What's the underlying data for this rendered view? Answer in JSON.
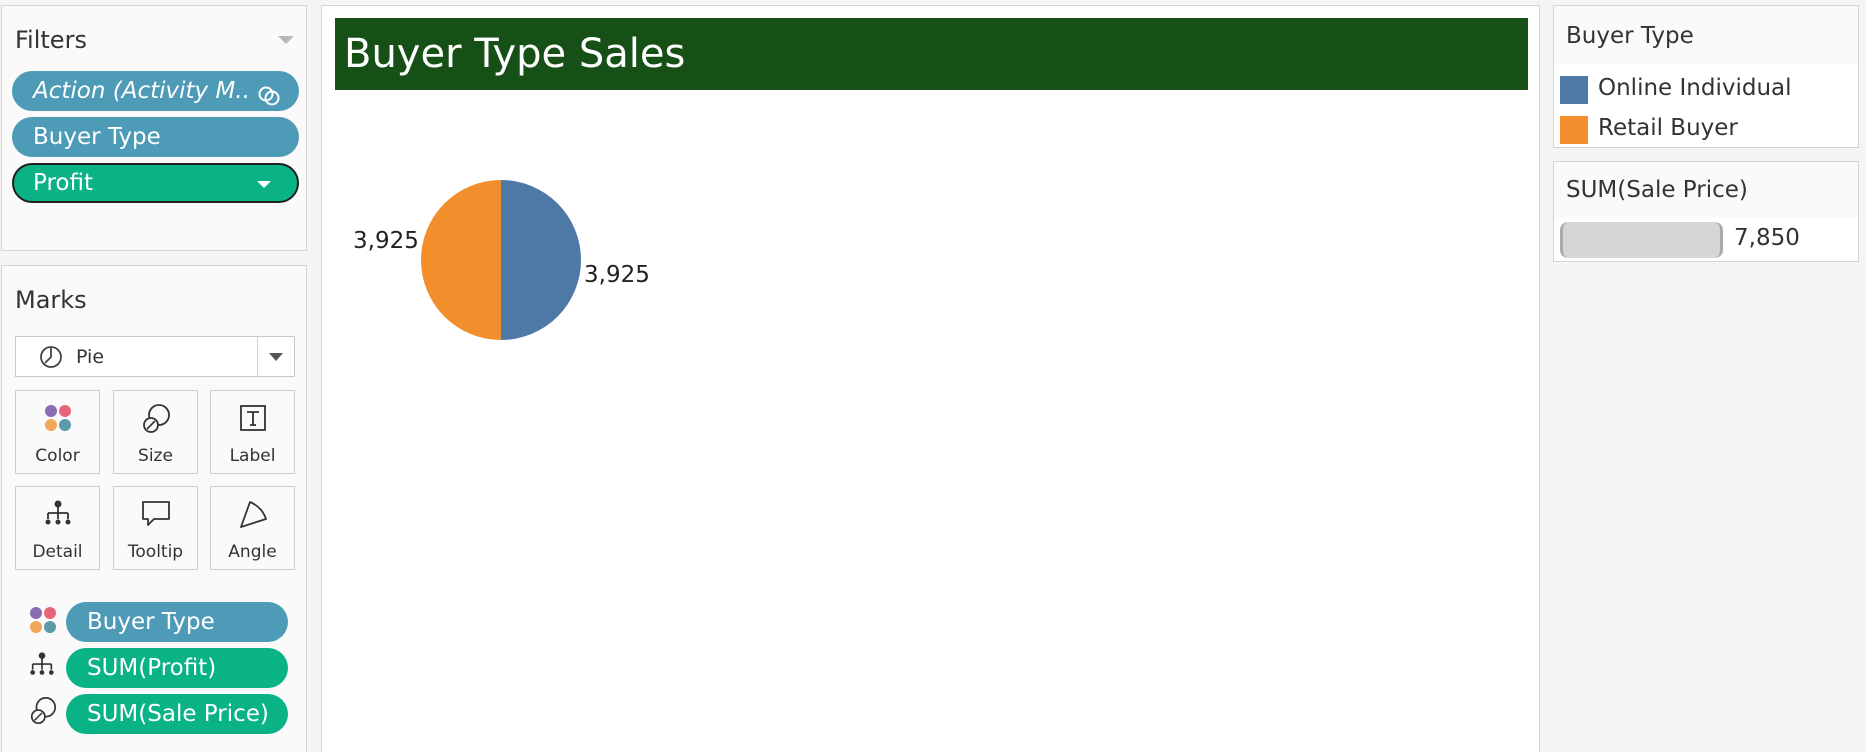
{
  "filters": {
    "title": "Filters",
    "pills": [
      {
        "label": "Action (Activity M..",
        "color": "#4d9bb7"
      },
      {
        "label": "Buyer Type",
        "color": "#4d9bb7"
      },
      {
        "label": "Profit",
        "color": "#0ab386"
      }
    ]
  },
  "marks": {
    "title": "Marks",
    "mark_type": "Pie",
    "buttons": [
      {
        "label": "Color",
        "icon": "color-dots-icon"
      },
      {
        "label": "Size",
        "icon": "size-circles-icon"
      },
      {
        "label": "Label",
        "icon": "text-label-icon"
      },
      {
        "label": "Detail",
        "icon": "hierarchy-icon"
      },
      {
        "label": "Tooltip",
        "icon": "speech-bubble-icon"
      },
      {
        "label": "Angle",
        "icon": "angle-wedge-icon"
      }
    ],
    "shelf": [
      {
        "label": "Buyer Type",
        "icon": "color-dots-icon",
        "color": "#4d9bb7"
      },
      {
        "label": "SUM(Profit)",
        "icon": "hierarchy-icon",
        "color": "#0ab386"
      },
      {
        "label": "SUM(Sale Price)",
        "icon": "size-circles-icon",
        "color": "#0ab386"
      }
    ]
  },
  "view": {
    "title": "Buyer Type Sales",
    "title_bg": "#165016"
  },
  "chart_data": {
    "type": "pie",
    "categories": [
      "Online Individual",
      "Retail Buyer"
    ],
    "values": [
      3925,
      3925
    ],
    "labels": [
      "3,925",
      "3,925"
    ],
    "colors": [
      "#4e79a7",
      "#f28e2b"
    ],
    "title": "Buyer Type Sales"
  },
  "legend": {
    "title": "Buyer Type",
    "items": [
      {
        "label": "Online Individual",
        "color": "#4e79a7"
      },
      {
        "label": "Retail Buyer",
        "color": "#f28e2b"
      }
    ]
  },
  "size_legend": {
    "title": "SUM(Sale Price)",
    "value": "7,850"
  }
}
